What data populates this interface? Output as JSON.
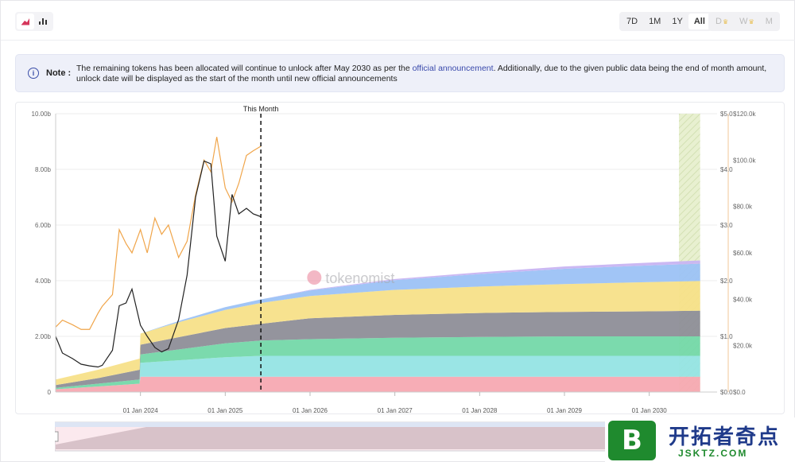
{
  "toolbar": {
    "chart_type_icons": [
      "area-chart-icon",
      "bar-chart-icon"
    ],
    "ranges": [
      "7D",
      "1M",
      "1Y",
      "All"
    ],
    "active_range": "All",
    "intervals": [
      "D",
      "W",
      "M"
    ],
    "crown_icon": "crown-icon"
  },
  "note": {
    "icon": "info-icon",
    "label": "Note",
    "colon": ":",
    "text_before": "The remaining tokens has been allocated will continue to unlock after May 2030 as per the ",
    "link": "official announcement",
    "text_after": ". Additionally, due to the given public data being the end of month amount, unlock date will be displayed as the start of the month until new official announcements"
  },
  "watermark": {
    "text": "tokenomist"
  },
  "site_badge": {
    "letter": "B",
    "name": "开拓者奇点",
    "domain": "JSKTZ.COM"
  },
  "chart_data": {
    "type": "area",
    "title": "",
    "annotation": "This Month",
    "this_month_x": 2025.42,
    "x_range": [
      2023.0,
      2030.8
    ],
    "x_ticks": [
      {
        "x": 2024.0,
        "label": "01 Jan 2024"
      },
      {
        "x": 2025.0,
        "label": "01 Jan 2025"
      },
      {
        "x": 2026.0,
        "label": "01 Jan 2026"
      },
      {
        "x": 2027.0,
        "label": "01 Jan 2027"
      },
      {
        "x": 2028.0,
        "label": "01 Jan 2028"
      },
      {
        "x": 2029.0,
        "label": "01 Jan 2029"
      },
      {
        "x": 2030.0,
        "label": "01 Jan 2030"
      }
    ],
    "y_left": {
      "ticks": [
        "0",
        "2.00b",
        "4.00b",
        "6.00b",
        "8.00b",
        "10.00b"
      ],
      "range": [
        0,
        10
      ]
    },
    "y_price": {
      "ticks": [
        "$0.0",
        "$1.0",
        "$2.0",
        "$3.0",
        "$4.0",
        "$5.0"
      ],
      "range": [
        0,
        5
      ]
    },
    "y_mcap": {
      "ticks": [
        "$0.0",
        "$20.0k",
        "$40.0k",
        "$60.0k",
        "$80.0k",
        "$100.0k",
        "$120.0k"
      ],
      "range": [
        0,
        120
      ]
    },
    "x": [
      2023.0,
      2023.5,
      2023.99,
      2024.0,
      2024.5,
      2025.0,
      2025.42,
      2026.0,
      2027.0,
      2028.0,
      2029.0,
      2030.0,
      2030.6
    ],
    "series": [
      {
        "color": "#f7a9b2",
        "values": [
          0.1,
          0.2,
          0.3,
          0.55,
          0.55,
          0.55,
          0.55,
          0.55,
          0.55,
          0.55,
          0.55,
          0.55,
          0.55
        ]
      },
      {
        "color": "#95e4e4",
        "values": [
          0.0,
          0.0,
          0.0,
          0.5,
          0.6,
          0.7,
          0.75,
          0.75,
          0.75,
          0.75,
          0.75,
          0.75,
          0.75
        ]
      },
      {
        "color": "#74d8a9",
        "values": [
          0.05,
          0.1,
          0.15,
          0.3,
          0.4,
          0.5,
          0.55,
          0.6,
          0.65,
          0.68,
          0.7,
          0.7,
          0.7
        ]
      },
      {
        "color": "#8e8e98",
        "values": [
          0.1,
          0.2,
          0.35,
          0.35,
          0.45,
          0.55,
          0.6,
          0.75,
          0.82,
          0.86,
          0.88,
          0.9,
          0.92
        ]
      },
      {
        "color": "#f7e089",
        "values": [
          0.2,
          0.3,
          0.4,
          0.4,
          0.55,
          0.65,
          0.75,
          0.8,
          0.9,
          0.95,
          1.0,
          1.05,
          1.07
        ]
      },
      {
        "color": "#9cc2f6",
        "values": [
          0.0,
          0.0,
          0.0,
          0.0,
          0.05,
          0.1,
          0.13,
          0.2,
          0.35,
          0.45,
          0.55,
          0.6,
          0.62
        ]
      },
      {
        "color": "#c8b4f2",
        "values": [
          0.0,
          0.0,
          0.0,
          0.0,
          0.0,
          0.0,
          0.0,
          0.02,
          0.04,
          0.06,
          0.08,
          0.1,
          0.12
        ]
      }
    ],
    "price_line": {
      "color": "#222222",
      "x": [
        2023.0,
        2023.08,
        2023.2,
        2023.3,
        2023.4,
        2023.5,
        2023.55,
        2023.67,
        2023.75,
        2023.83,
        2023.9,
        2024.0,
        2024.08,
        2024.17,
        2024.25,
        2024.33,
        2024.45,
        2024.55,
        2024.65,
        2024.75,
        2024.83,
        2024.9,
        2025.0,
        2025.08,
        2025.16,
        2025.25,
        2025.33,
        2025.42
      ],
      "y": [
        1.0,
        0.7,
        0.6,
        0.5,
        0.47,
        0.45,
        0.48,
        0.75,
        1.55,
        1.6,
        1.85,
        1.2,
        1.0,
        0.8,
        0.72,
        0.78,
        1.3,
        2.1,
        3.5,
        4.15,
        4.1,
        2.8,
        2.35,
        3.55,
        3.2,
        3.3,
        3.2,
        3.15
      ]
    },
    "mcap_line": {
      "color": "#f0a54a",
      "x": [
        2023.0,
        2023.08,
        2023.2,
        2023.3,
        2023.4,
        2023.5,
        2023.55,
        2023.67,
        2023.75,
        2023.83,
        2023.9,
        2024.0,
        2024.08,
        2024.17,
        2024.25,
        2024.33,
        2024.45,
        2024.55,
        2024.65,
        2024.75,
        2024.83,
        2024.9,
        2025.0,
        2025.08,
        2025.16,
        2025.25,
        2025.33,
        2025.42
      ],
      "y": [
        28,
        31,
        29,
        27,
        27,
        34,
        37,
        42,
        70,
        64,
        60,
        70,
        60,
        75,
        68,
        72,
        58,
        65,
        85,
        100,
        95,
        110,
        88,
        82,
        90,
        102,
        104,
        106
      ]
    },
    "forecast_band": {
      "x0": 2030.35,
      "x1": 2030.6,
      "color": "#e8f0d0"
    }
  }
}
